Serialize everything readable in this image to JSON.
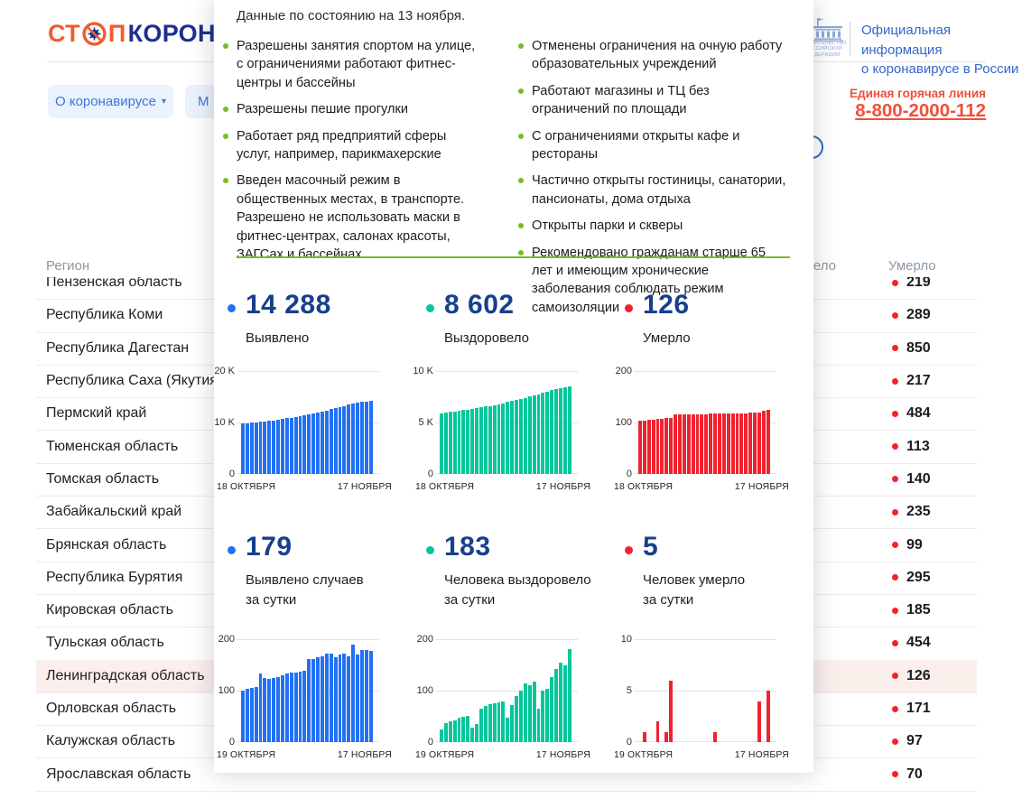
{
  "colors": {
    "blue": "#2271F5",
    "teal": "#00C79C",
    "red": "#F1222E",
    "navy": "#173F8E",
    "green": "#7CB928",
    "link_blue": "#3B77DB",
    "hotline": "#F04F3B",
    "logo_orange": "#F15B2D",
    "logo_navy": "#1C2F8F",
    "gov_blue": "#3566CB"
  },
  "header": {
    "logo": {
      "part_orange_1": "СТ",
      "part_orange_2": "П",
      "part_navy": "КОРОНАВИ"
    },
    "official": {
      "line1": "Официальная информация",
      "line2": "о коронавирусе в России"
    },
    "emblem_lines": [
      "ПРАВИТЕЛЬСТВО",
      "РОССИЙСКОЙ",
      "ФЕДЕРАЦИИ"
    ],
    "nav": [
      {
        "label": "О коронавирусе",
        "caret": "▾"
      },
      {
        "label": "М"
      }
    ],
    "hotline": {
      "label": "Единая горячая линия",
      "phone": "8-800-2000-112"
    }
  },
  "table": {
    "headers": {
      "region": "Регион",
      "recovered": "Выздоровело",
      "deaths": "Умерло"
    },
    "rows": [
      {
        "region": "Пензенская область",
        "deaths": "219",
        "highlighted": false
      },
      {
        "region": "Республика Коми",
        "deaths": "289",
        "highlighted": false
      },
      {
        "region": "Республика Дагестан",
        "deaths": "850",
        "highlighted": false
      },
      {
        "region": "Республика Саха (Якутия)",
        "deaths": "217",
        "highlighted": false
      },
      {
        "region": "Пермский край",
        "deaths": "484",
        "highlighted": false
      },
      {
        "region": "Тюменская область",
        "deaths": "113",
        "highlighted": false
      },
      {
        "region": "Томская область",
        "deaths": "140",
        "highlighted": false
      },
      {
        "region": "Забайкальский край",
        "deaths": "235",
        "highlighted": false
      },
      {
        "region": "Брянская область",
        "deaths": "99",
        "highlighted": false
      },
      {
        "region": "Республика Бурятия",
        "deaths": "295",
        "highlighted": false
      },
      {
        "region": "Кировская область",
        "deaths": "185",
        "highlighted": false
      },
      {
        "region": "Тульская область",
        "deaths": "454",
        "highlighted": false
      },
      {
        "region": "Ленинградская область",
        "deaths": "126",
        "highlighted": true
      },
      {
        "region": "Орловская область",
        "deaths": "171",
        "highlighted": false
      },
      {
        "region": "Калужская область",
        "deaths": "97",
        "highlighted": false
      },
      {
        "region": "Ярославская область",
        "deaths": "70",
        "highlighted": false
      }
    ]
  },
  "modal": {
    "intro": "Данные по состоянию на 13 ноября.",
    "measures_left": [
      "Разрешены занятия спортом на улице, с ограничениями работают фитнес-центры и бассейны",
      "Разрешены пешие прогулки",
      "Работает ряд предприятий сферы услуг, например, парикмахерские",
      "Введен масочный режим в общественных местах, в транспорте. Разрешено не использовать маски в фитнес-центрах, салонах красоты, ЗАГСах и бассейнах"
    ],
    "measures_right": [
      "Отменены ограничения на очную работу образовательных учреждений",
      "Работают магазины и ТЦ без ограничений по площади",
      "С ограничениями открыты кафе и рестораны",
      "Частично открыты гостиницы, санатории, пансионаты, дома отдыха",
      "Открыты парки и скверы",
      "Рекомендовано гражданам старше 65 лет и имеющим хронические заболевания соблюдать режим самоизоляции"
    ],
    "stats_rows": [
      [
        {
          "value": "14 288",
          "color_key": "blue",
          "label_lines": [
            "Выявлено"
          ]
        },
        {
          "value": "8 602",
          "color_key": "teal",
          "label_lines": [
            "Выздоровело"
          ]
        },
        {
          "value": "126",
          "color_key": "red",
          "label_lines": [
            "Умерло"
          ]
        }
      ],
      [
        {
          "value": "179",
          "color_key": "blue",
          "label_lines": [
            "Выявлено случаев",
            "за сутки"
          ]
        },
        {
          "value": "183",
          "color_key": "teal",
          "label_lines": [
            "Человека выздоровело",
            "за сутки"
          ]
        },
        {
          "value": "5",
          "color_key": "red",
          "label_lines": [
            "Человек умерло",
            "за сутки"
          ]
        }
      ]
    ],
    "charts": [
      {
        "name": "confirmed-cumulative",
        "color_key": "blue",
        "ymax": 20000,
        "yticks": [
          "20 K",
          "10 K",
          "0"
        ],
        "xlabels": [
          "18 ОКТЯБРЯ",
          "17 НОЯБРЯ"
        ],
        "values": [
          9900,
          9960,
          10030,
          10110,
          10200,
          10300,
          10410,
          10520,
          10640,
          10770,
          10900,
          11040,
          11190,
          11350,
          11520,
          11700,
          11880,
          12070,
          12270,
          12470,
          12680,
          12890,
          13110,
          13330,
          13550,
          13760,
          13950,
          14109,
          14200,
          14288
        ]
      },
      {
        "name": "recovered-cumulative",
        "color_key": "teal",
        "ymax": 10000,
        "yticks": [
          "10 K",
          "5 K",
          "0"
        ],
        "xlabels": [
          "18 ОКТЯБРЯ",
          "17 НОЯБРЯ"
        ],
        "values": [
          5950,
          6010,
          6070,
          6130,
          6190,
          6250,
          6310,
          6380,
          6450,
          6520,
          6600,
          6680,
          6760,
          6850,
          6940,
          7040,
          7140,
          7250,
          7360,
          7470,
          7590,
          7710,
          7830,
          7960,
          8090,
          8220,
          8350,
          8419,
          8500,
          8602
        ]
      },
      {
        "name": "deaths-cumulative",
        "color_key": "red",
        "ymax": 200,
        "yticks": [
          "200",
          "100",
          "0"
        ],
        "xlabels": [
          "18 ОКТЯБРЯ",
          "17 НОЯБРЯ"
        ],
        "values": [
          104,
          105,
          107,
          107,
          108,
          108,
          109,
          110,
          116,
          116,
          116,
          116,
          117,
          117,
          117,
          117,
          118,
          118,
          118,
          118,
          119,
          119,
          119,
          119,
          119,
          120,
          120,
          121,
          124,
          126
        ]
      },
      {
        "name": "confirmed-daily",
        "color_key": "blue",
        "ymax": 200,
        "yticks": [
          "200",
          "100",
          "0"
        ],
        "xlabels": [
          "19 ОКТЯБРЯ",
          "17 НОЯБРЯ"
        ],
        "values": [
          101,
          104,
          107,
          108,
          135,
          125,
          124,
          126,
          128,
          131,
          134,
          137,
          136,
          138,
          140,
          163,
          162,
          166,
          169,
          174,
          173,
          166,
          172,
          174,
          168,
          192,
          171,
          181,
          180,
          179
        ]
      },
      {
        "name": "recovered-daily",
        "color_key": "teal",
        "ymax": 200,
        "yticks": [
          "200",
          "100",
          "0"
        ],
        "xlabels": [
          "19 ОКТЯБРЯ",
          "17 НОЯБРЯ"
        ],
        "values": [
          25,
          38,
          40,
          42,
          48,
          50,
          52,
          28,
          36,
          65,
          70,
          74,
          76,
          78,
          80,
          47,
          73,
          90,
          100,
          115,
          112,
          118,
          65,
          100,
          105,
          128,
          143,
          155,
          150,
          183
        ]
      },
      {
        "name": "deaths-daily",
        "color_key": "red",
        "ymax": 10,
        "yticks": [
          "10",
          "5",
          "0"
        ],
        "xlabels": [
          "19 ОКТЯБРЯ",
          "17 НОЯБРЯ"
        ],
        "values": [
          0,
          1,
          0,
          0,
          2,
          0,
          1,
          6,
          0,
          0,
          0,
          0,
          0,
          0,
          0,
          0,
          0,
          1,
          0,
          0,
          0,
          0,
          0,
          0,
          0,
          0,
          0,
          4,
          0,
          5
        ]
      }
    ]
  }
}
